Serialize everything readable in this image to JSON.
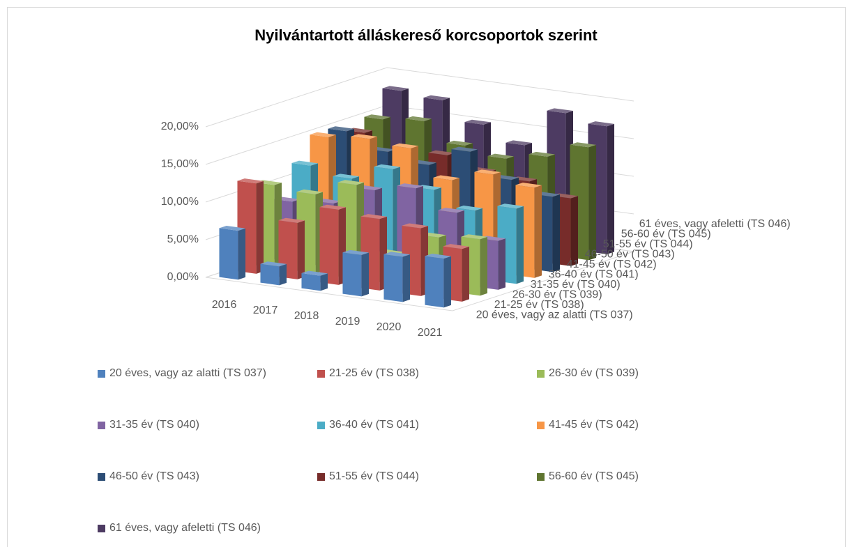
{
  "chart_data": {
    "type": "bar3d",
    "title": "Nyilvántartott álláskereső korcsoportok szerint",
    "categories": [
      "2016",
      "2017",
      "2018",
      "2019",
      "2020",
      "2021"
    ],
    "series": [
      {
        "name": "20 éves, vagy az alatti (TS 037)",
        "color": "#4f81bd",
        "values": [
          6.5,
          2.5,
          2,
          5.5,
          6,
          6.5
        ]
      },
      {
        "name": "21-25 év (TS 038)",
        "color": "#c0504d",
        "values": [
          12,
          7.5,
          10,
          9.5,
          9,
          7
        ]
      },
      {
        "name": "26-30 év (TS 039)",
        "color": "#9bbb59",
        "values": [
          11,
          10.5,
          12.5,
          4,
          7,
          7.5
        ]
      },
      {
        "name": "31-35 év (TS 040)",
        "color": "#8064a2",
        "values": [
          8,
          8.5,
          11,
          12,
          9.5,
          6.5
        ]
      },
      {
        "name": "36-40 év (TS 041)",
        "color": "#4bacc6",
        "values": [
          12,
          11,
          13,
          11,
          9,
          10
        ]
      },
      {
        "name": "41-45 év (TS 042)",
        "color": "#f79646",
        "values": [
          15,
          15.5,
          15,
          11.5,
          13,
          12
        ]
      },
      {
        "name": "46-50 év (TS 043)",
        "color": "#2c4d75",
        "values": [
          15,
          13,
          12,
          14.5,
          11.5,
          10
        ]
      },
      {
        "name": "51-55 év (TS 044)",
        "color": "#772c2a",
        "values": [
          14,
          12,
          12.5,
          11,
          10.5,
          9
        ]
      },
      {
        "name": "56-60 év (TS 045)",
        "color": "#5f7530",
        "values": [
          15,
          15.5,
          13,
          12,
          13,
          15
        ]
      },
      {
        "name": "61 éves, vagy afeletti (TS 046)",
        "color": "#4d3b62",
        "values": [
          18,
          17.5,
          15,
          13,
          18,
          17
        ]
      }
    ],
    "ylim": [
      0,
      20
    ],
    "yticks": [
      {
        "value": 0,
        "label": "0,00%"
      },
      {
        "value": 5,
        "label": "5,00%"
      },
      {
        "value": 10,
        "label": "10,00%"
      },
      {
        "value": 15,
        "label": "15,00%"
      },
      {
        "value": 20,
        "label": "20,00%"
      }
    ],
    "grid": true,
    "legend": "bottom"
  }
}
